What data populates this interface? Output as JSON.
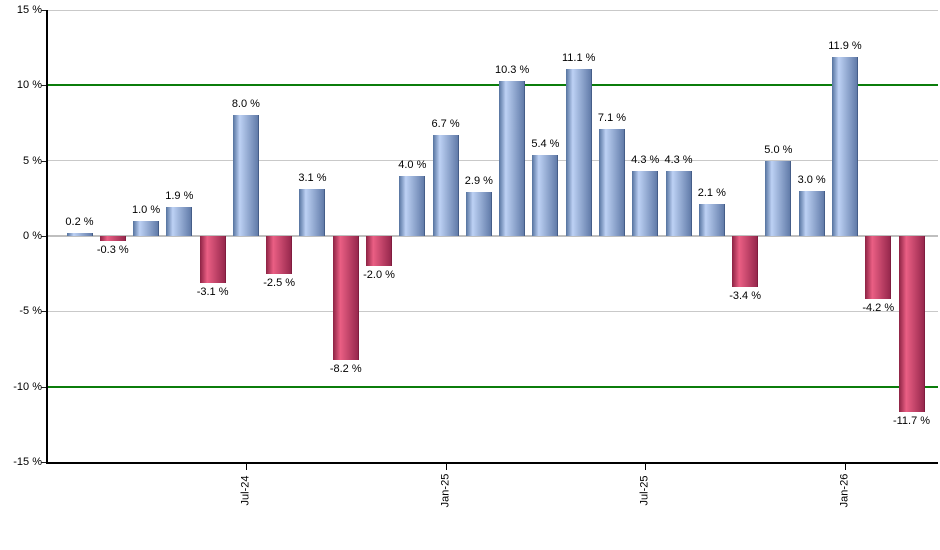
{
  "chart_data": {
    "type": "bar",
    "title": "",
    "unit": "%",
    "values": [
      0.2,
      -0.3,
      1.0,
      1.9,
      -3.1,
      8.0,
      -2.5,
      3.1,
      -8.2,
      -2.0,
      4.0,
      6.7,
      2.9,
      10.3,
      5.4,
      11.1,
      7.1,
      4.3,
      4.3,
      2.1,
      -3.4,
      5.0,
      3.0,
      11.9,
      -4.2,
      -11.7
    ],
    "bar_labels": [
      "0.2 %",
      "-0.3 %",
      "1.0 %",
      "1.9 %",
      "-3.1 %",
      "8.0 %",
      "-2.5 %",
      "3.1 %",
      "-8.2 %",
      "-2.0 %",
      "4.0 %",
      "6.7 %",
      "2.9 %",
      "10.3 %",
      "5.4 %",
      "11.1 %",
      "7.1 %",
      "4.3 %",
      "4.3 %",
      "2.1 %",
      "-3.4 %",
      "5.0 %",
      "3.0 %",
      "11.9 %",
      "-4.2 %",
      "-11.7 %"
    ],
    "y_axis": {
      "min": -15,
      "max": 15,
      "tick_values": [
        15,
        10,
        5,
        0,
        -5,
        -10,
        -15
      ],
      "tick_labels": [
        "15 %",
        "10 %",
        "5 %",
        "0 %",
        "-5 %",
        "-10 %",
        "-15 %"
      ]
    },
    "x_axis": {
      "tick_labels": [
        "Jul-24",
        "Jan-25",
        "Jul-25",
        "Jan-26"
      ],
      "tick_bar_indices": [
        5,
        11,
        17,
        23
      ]
    },
    "gridline_values": [
      15,
      5,
      -5
    ],
    "zero_line_value": 0,
    "threshold_values": [
      10,
      -10
    ],
    "legend": "none",
    "colors": {
      "positive_bar_edge": "#54729e",
      "positive_bar_highlight": "#bdd1f4",
      "positive_bar_right": "#5d77a5",
      "negative_bar_edge": "#8c2243",
      "negative_bar_highlight": "#ea5f84",
      "negative_bar_right": "#93254a",
      "threshold_line": "#0b7d0b",
      "gridline": "#c9c9c9",
      "zero_line": "#bfbfbf",
      "axis": "#000000",
      "label_text": "#000000"
    }
  }
}
